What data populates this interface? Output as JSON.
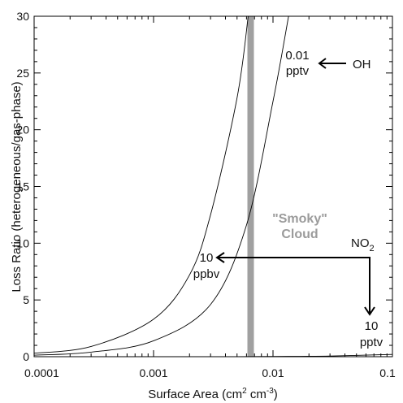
{
  "chart_data": {
    "type": "line",
    "title": "",
    "xlabel": "Surface Area (cm² cm⁻³)",
    "xlabel_parts": {
      "base": "Surface Area (cm",
      "sup1": "2",
      "mid": " cm",
      "sup2": "-3",
      "end": ")"
    },
    "ylabel": "Loss Ratio (heterogeneous/gas-phase)",
    "xscale": "log",
    "xlim": [
      0.0001,
      0.1
    ],
    "ylim": [
      0,
      30
    ],
    "x_ticks": [
      0.0001,
      0.001,
      0.01,
      0.1
    ],
    "x_tick_labels": [
      "0.0001",
      "0.001",
      "0.01",
      "0.1"
    ],
    "y_ticks": [
      0,
      5,
      10,
      15,
      20,
      25,
      30
    ],
    "y_tick_labels": [
      "0",
      "5",
      "10",
      "15",
      "20",
      "25",
      "30"
    ],
    "grid": false,
    "series": [
      {
        "x": [
          0.0001,
          0.0003,
          0.001,
          0.002,
          0.003,
          0.005,
          0.0062
        ],
        "y": [
          0.3,
          0.9,
          3.3,
          7.2,
          12.5,
          22.8,
          30
        ]
      },
      {
        "x": [
          0.0001,
          0.0003,
          0.001,
          0.003,
          0.006,
          0.01,
          0.0135
        ],
        "y": [
          0.13,
          0.4,
          1.4,
          4.6,
          11.6,
          22.5,
          30
        ]
      },
      {
        "x": [
          0.005,
          0.01,
          0.03,
          0.1
        ],
        "y": [
          0.0,
          0.02,
          0.06,
          0.2
        ]
      }
    ],
    "band": {
      "x": 0.0065,
      "label_line1": "\"Smoky\"",
      "label_line2": "Cloud"
    },
    "annotations": {
      "oh_value_line1": "0.01",
      "oh_value_line2": "pptv",
      "oh_label": "OH",
      "no2_label": "NO",
      "no2_subscript": "2",
      "no2_left_line1": "10",
      "no2_left_line2": "ppbv",
      "no2_down_line1": "10",
      "no2_down_line2": "pptv"
    }
  }
}
